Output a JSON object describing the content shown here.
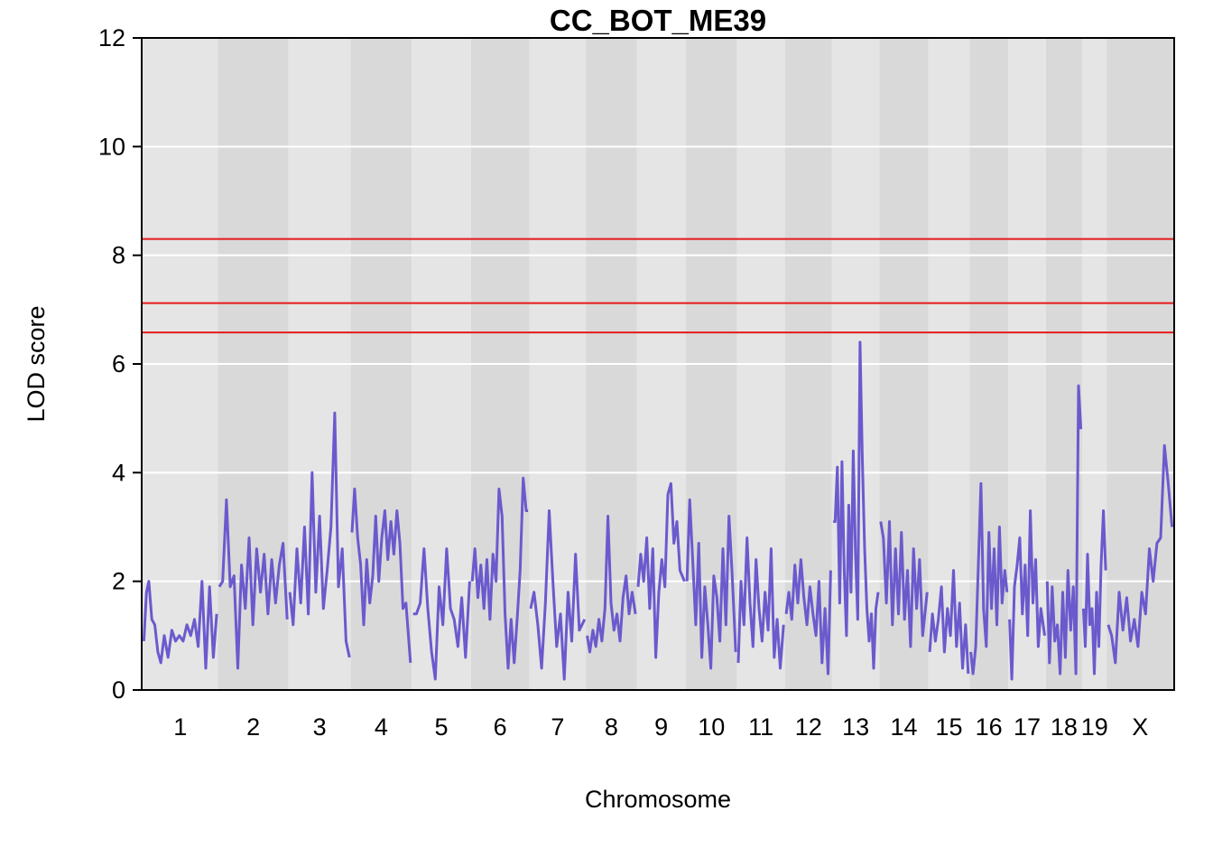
{
  "chart_data": {
    "type": "line",
    "title": "CC_BOT_ME39",
    "xlabel": "Chromosome",
    "ylabel": "LOD score",
    "ylim": [
      0,
      12
    ],
    "yticks": [
      0,
      2,
      4,
      6,
      8,
      10,
      12
    ],
    "grid": true,
    "legend": "none",
    "thresholds": [
      8.3,
      7.12,
      6.58
    ],
    "colors": {
      "line": "#6a5acd",
      "threshold": "#e41a1c",
      "band_light": "#e5e5e5",
      "band_dark": "#d9d9d9",
      "grid": "#ffffff"
    },
    "chromosomes": [
      {
        "label": "1",
        "len": 195
      },
      {
        "label": "2",
        "len": 182
      },
      {
        "label": "3",
        "len": 160
      },
      {
        "label": "4",
        "len": 157
      },
      {
        "label": "5",
        "len": 152
      },
      {
        "label": "6",
        "len": 150
      },
      {
        "label": "7",
        "len": 145
      },
      {
        "label": "8",
        "len": 130
      },
      {
        "label": "9",
        "len": 125
      },
      {
        "label": "10",
        "len": 131
      },
      {
        "label": "11",
        "len": 122
      },
      {
        "label": "12",
        "len": 120
      },
      {
        "label": "13",
        "len": 121
      },
      {
        "label": "14",
        "len": 125
      },
      {
        "label": "15",
        "len": 104
      },
      {
        "label": "16",
        "len": 98
      },
      {
        "label": "17",
        "len": 95
      },
      {
        "label": "18",
        "len": 91
      },
      {
        "label": "19",
        "len": 61
      },
      {
        "label": "X",
        "len": 171
      }
    ],
    "series": [
      {
        "chr": "1",
        "pos": [
          1,
          8,
          14,
          22,
          30,
          38,
          46,
          55,
          65,
          75,
          85,
          95,
          105,
          115,
          125,
          135,
          145,
          155,
          165,
          175,
          185,
          194
        ],
        "lod": [
          0.9,
          1.8,
          2.0,
          1.3,
          1.2,
          0.7,
          0.5,
          1.0,
          0.6,
          1.1,
          0.9,
          1.0,
          0.9,
          1.2,
          1.0,
          1.3,
          0.8,
          2.0,
          0.4,
          1.9,
          0.6,
          1.4
        ]
      },
      {
        "chr": "2",
        "pos": [
          1,
          10,
          20,
          30,
          40,
          50,
          60,
          70,
          80,
          90,
          100,
          110,
          120,
          130,
          140,
          150,
          160,
          170,
          181
        ],
        "lod": [
          1.9,
          2.0,
          3.5,
          1.9,
          2.1,
          0.4,
          2.3,
          1.5,
          2.8,
          1.2,
          2.6,
          1.8,
          2.5,
          1.4,
          2.4,
          1.6,
          2.3,
          2.7,
          1.3
        ]
      },
      {
        "chr": "3",
        "pos": [
          1,
          10,
          20,
          30,
          40,
          50,
          60,
          70,
          80,
          90,
          100,
          110,
          120,
          130,
          140,
          150,
          159
        ],
        "lod": [
          1.8,
          1.2,
          2.6,
          1.6,
          3.0,
          1.4,
          4.0,
          1.8,
          3.2,
          1.5,
          2.2,
          3.0,
          5.1,
          1.9,
          2.6,
          0.9,
          0.6
        ]
      },
      {
        "chr": "4",
        "pos": [
          1,
          8,
          16,
          24,
          32,
          40,
          48,
          56,
          64,
          72,
          80,
          88,
          96,
          104,
          112,
          120,
          128,
          136,
          144,
          156
        ],
        "lod": [
          2.9,
          3.7,
          2.8,
          2.3,
          1.2,
          2.4,
          1.6,
          2.1,
          3.2,
          2.0,
          2.8,
          3.3,
          2.4,
          3.1,
          2.5,
          3.3,
          2.7,
          1.5,
          1.6,
          0.5
        ]
      },
      {
        "chr": "5",
        "pos": [
          1,
          10,
          20,
          30,
          40,
          50,
          60,
          70,
          80,
          90,
          100,
          110,
          120,
          130,
          140,
          151
        ],
        "lod": [
          1.4,
          1.4,
          1.6,
          2.6,
          1.5,
          0.7,
          0.2,
          1.9,
          1.2,
          2.6,
          1.5,
          1.3,
          0.8,
          1.7,
          0.6,
          2.0
        ]
      },
      {
        "chr": "6",
        "pos": [
          1,
          8,
          16,
          24,
          32,
          40,
          48,
          56,
          64,
          72,
          80,
          88,
          96,
          104,
          112,
          120,
          128,
          136,
          144,
          149
        ],
        "lod": [
          2.0,
          2.6,
          1.7,
          2.3,
          1.5,
          2.4,
          1.3,
          2.5,
          2.0,
          3.7,
          3.2,
          1.4,
          0.4,
          1.3,
          0.5,
          1.3,
          2.2,
          3.9,
          3.3,
          3.3
        ]
      },
      {
        "chr": "7",
        "pos": [
          1,
          10,
          20,
          30,
          40,
          50,
          60,
          70,
          80,
          90,
          100,
          110,
          120,
          130,
          144
        ],
        "lod": [
          1.5,
          1.8,
          1.2,
          0.4,
          1.6,
          3.3,
          2.0,
          0.8,
          1.4,
          0.2,
          1.8,
          0.9,
          2.5,
          1.1,
          1.3
        ]
      },
      {
        "chr": "8",
        "pos": [
          1,
          8,
          16,
          24,
          32,
          40,
          48,
          56,
          64,
          72,
          80,
          88,
          96,
          104,
          112,
          120,
          129
        ],
        "lod": [
          1.0,
          0.7,
          1.1,
          0.8,
          1.3,
          0.9,
          1.5,
          3.2,
          1.6,
          1.1,
          1.4,
          0.9,
          1.7,
          2.1,
          1.4,
          1.8,
          1.4
        ]
      },
      {
        "chr": "9",
        "pos": [
          1,
          8,
          16,
          24,
          32,
          40,
          48,
          56,
          64,
          72,
          80,
          88,
          96,
          104,
          112,
          124
        ],
        "lod": [
          1.9,
          2.5,
          2.0,
          2.8,
          1.5,
          2.6,
          0.6,
          1.8,
          2.4,
          1.9,
          3.6,
          3.8,
          2.7,
          3.1,
          2.2,
          2.0
        ]
      },
      {
        "chr": "10",
        "pos": [
          1,
          8,
          16,
          24,
          32,
          40,
          48,
          56,
          64,
          72,
          80,
          88,
          96,
          104,
          112,
          120,
          130
        ],
        "lod": [
          2.0,
          3.5,
          2.4,
          1.2,
          2.7,
          0.6,
          1.9,
          1.2,
          0.4,
          2.1,
          1.7,
          0.9,
          2.6,
          1.2,
          3.2,
          2.2,
          0.7
        ]
      },
      {
        "chr": "11",
        "pos": [
          1,
          8,
          16,
          24,
          32,
          40,
          48,
          56,
          64,
          72,
          80,
          88,
          96,
          104,
          112,
          121
        ],
        "lod": [
          0.5,
          2.0,
          1.2,
          2.8,
          1.6,
          0.8,
          2.4,
          1.5,
          0.9,
          1.8,
          1.1,
          2.6,
          0.6,
          1.3,
          0.4,
          1.2
        ]
      },
      {
        "chr": "12",
        "pos": [
          1,
          8,
          16,
          24,
          32,
          40,
          48,
          56,
          64,
          72,
          80,
          88,
          96,
          104,
          112,
          119
        ],
        "lod": [
          1.4,
          1.8,
          1.3,
          2.3,
          1.6,
          2.4,
          1.7,
          1.2,
          1.9,
          1.4,
          1.0,
          2.0,
          0.5,
          1.5,
          0.3,
          2.2
        ]
      },
      {
        "chr": "13",
        "pos": [
          1,
          6,
          12,
          18,
          24,
          30,
          36,
          42,
          48,
          54,
          60,
          66,
          72,
          78,
          84,
          90,
          96,
          102,
          108,
          114,
          120
        ],
        "lod": [
          3.1,
          3.1,
          4.1,
          1.6,
          4.2,
          2.2,
          1.0,
          3.4,
          1.8,
          4.4,
          2.5,
          1.3,
          6.4,
          4.3,
          2.6,
          1.5,
          0.9,
          1.4,
          0.4,
          1.5,
          1.8
        ]
      },
      {
        "chr": "14",
        "pos": [
          1,
          8,
          16,
          24,
          32,
          40,
          48,
          56,
          64,
          72,
          80,
          88,
          96,
          104,
          112,
          124
        ],
        "lod": [
          3.1,
          2.8,
          1.6,
          3.1,
          1.2,
          2.6,
          1.4,
          2.9,
          1.3,
          2.2,
          0.8,
          2.6,
          1.5,
          2.4,
          1.0,
          1.8
        ]
      },
      {
        "chr": "15",
        "pos": [
          1,
          8,
          16,
          24,
          32,
          40,
          48,
          56,
          64,
          72,
          80,
          88,
          96,
          103
        ],
        "lod": [
          0.7,
          1.4,
          0.9,
          1.3,
          1.9,
          0.7,
          1.5,
          1.0,
          2.2,
          0.8,
          1.6,
          0.4,
          1.2,
          0.3
        ]
      },
      {
        "chr": "16",
        "pos": [
          1,
          7,
          14,
          21,
          28,
          35,
          42,
          49,
          56,
          63,
          70,
          77,
          84,
          91,
          97
        ],
        "lod": [
          0.7,
          0.3,
          0.8,
          2.3,
          3.8,
          1.5,
          0.8,
          2.9,
          1.5,
          2.6,
          1.2,
          3.0,
          1.6,
          2.2,
          1.8
        ]
      },
      {
        "chr": "17",
        "pos": [
          1,
          7,
          14,
          21,
          28,
          35,
          42,
          49,
          56,
          63,
          70,
          77,
          84,
          94
        ],
        "lod": [
          1.3,
          0.2,
          1.9,
          2.3,
          2.8,
          1.4,
          2.3,
          1.0,
          3.3,
          1.6,
          2.4,
          0.8,
          1.5,
          1.0
        ]
      },
      {
        "chr": "18",
        "pos": [
          1,
          7,
          14,
          21,
          28,
          35,
          42,
          49,
          56,
          63,
          70,
          77,
          84,
          90
        ],
        "lod": [
          2.0,
          0.5,
          1.9,
          0.9,
          1.2,
          0.3,
          1.8,
          0.6,
          2.2,
          1.1,
          1.9,
          0.3,
          5.6,
          4.8
        ]
      },
      {
        "chr": "19",
        "pos": [
          1,
          6,
          12,
          18,
          24,
          30,
          36,
          42,
          48,
          54,
          60
        ],
        "lod": [
          1.5,
          0.8,
          2.5,
          1.2,
          1.5,
          0.3,
          1.8,
          0.8,
          2.3,
          3.3,
          2.2
        ]
      },
      {
        "chr": "X",
        "pos": [
          1,
          10,
          20,
          30,
          40,
          50,
          60,
          70,
          80,
          90,
          100,
          110,
          120,
          130,
          140,
          150,
          160,
          170
        ],
        "lod": [
          1.2,
          1.0,
          0.5,
          1.8,
          1.1,
          1.7,
          0.9,
          1.3,
          0.8,
          1.8,
          1.4,
          2.6,
          2.0,
          2.7,
          2.8,
          4.5,
          3.8,
          3.0
        ]
      }
    ]
  }
}
